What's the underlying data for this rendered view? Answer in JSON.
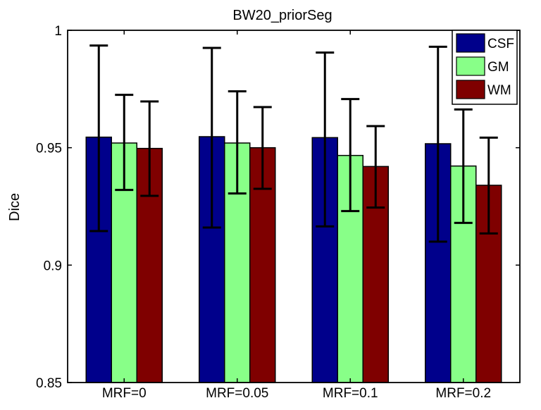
{
  "chart_data": {
    "type": "bar",
    "title": "BW20_priorSeg",
    "xlabel": "",
    "ylabel": "Dice",
    "ylim": [
      0.85,
      1.0
    ],
    "yticks": [
      0.85,
      0.9,
      0.95,
      1
    ],
    "ytick_labels": [
      "0.85",
      "0.9",
      "0.95",
      "1"
    ],
    "grid": false,
    "legend_position": "top-right",
    "categories": [
      "MRF=0",
      "MRF=0.05",
      "MRF=0.1",
      "MRF=0.2"
    ],
    "series": [
      {
        "name": "CSF",
        "color": "#00008b",
        "values": [
          0.9545,
          0.9547,
          0.9543,
          0.9517
        ],
        "error_low": [
          0.9145,
          0.916,
          0.9165,
          0.91
        ],
        "error_high": [
          0.9935,
          0.9925,
          0.9905,
          0.993
        ]
      },
      {
        "name": "GM",
        "color": "#88ff88",
        "values": [
          0.952,
          0.952,
          0.9467,
          0.9422
        ],
        "error_low": [
          0.932,
          0.9305,
          0.923,
          0.918
        ],
        "error_high": [
          0.9725,
          0.974,
          0.9707,
          0.9663
        ]
      },
      {
        "name": "WM",
        "color": "#7f0000",
        "values": [
          0.9497,
          0.95,
          0.942,
          0.934
        ],
        "error_low": [
          0.9295,
          0.9325,
          0.9245,
          0.9135
        ],
        "error_high": [
          0.9697,
          0.9673,
          0.9592,
          0.9543
        ]
      }
    ]
  }
}
